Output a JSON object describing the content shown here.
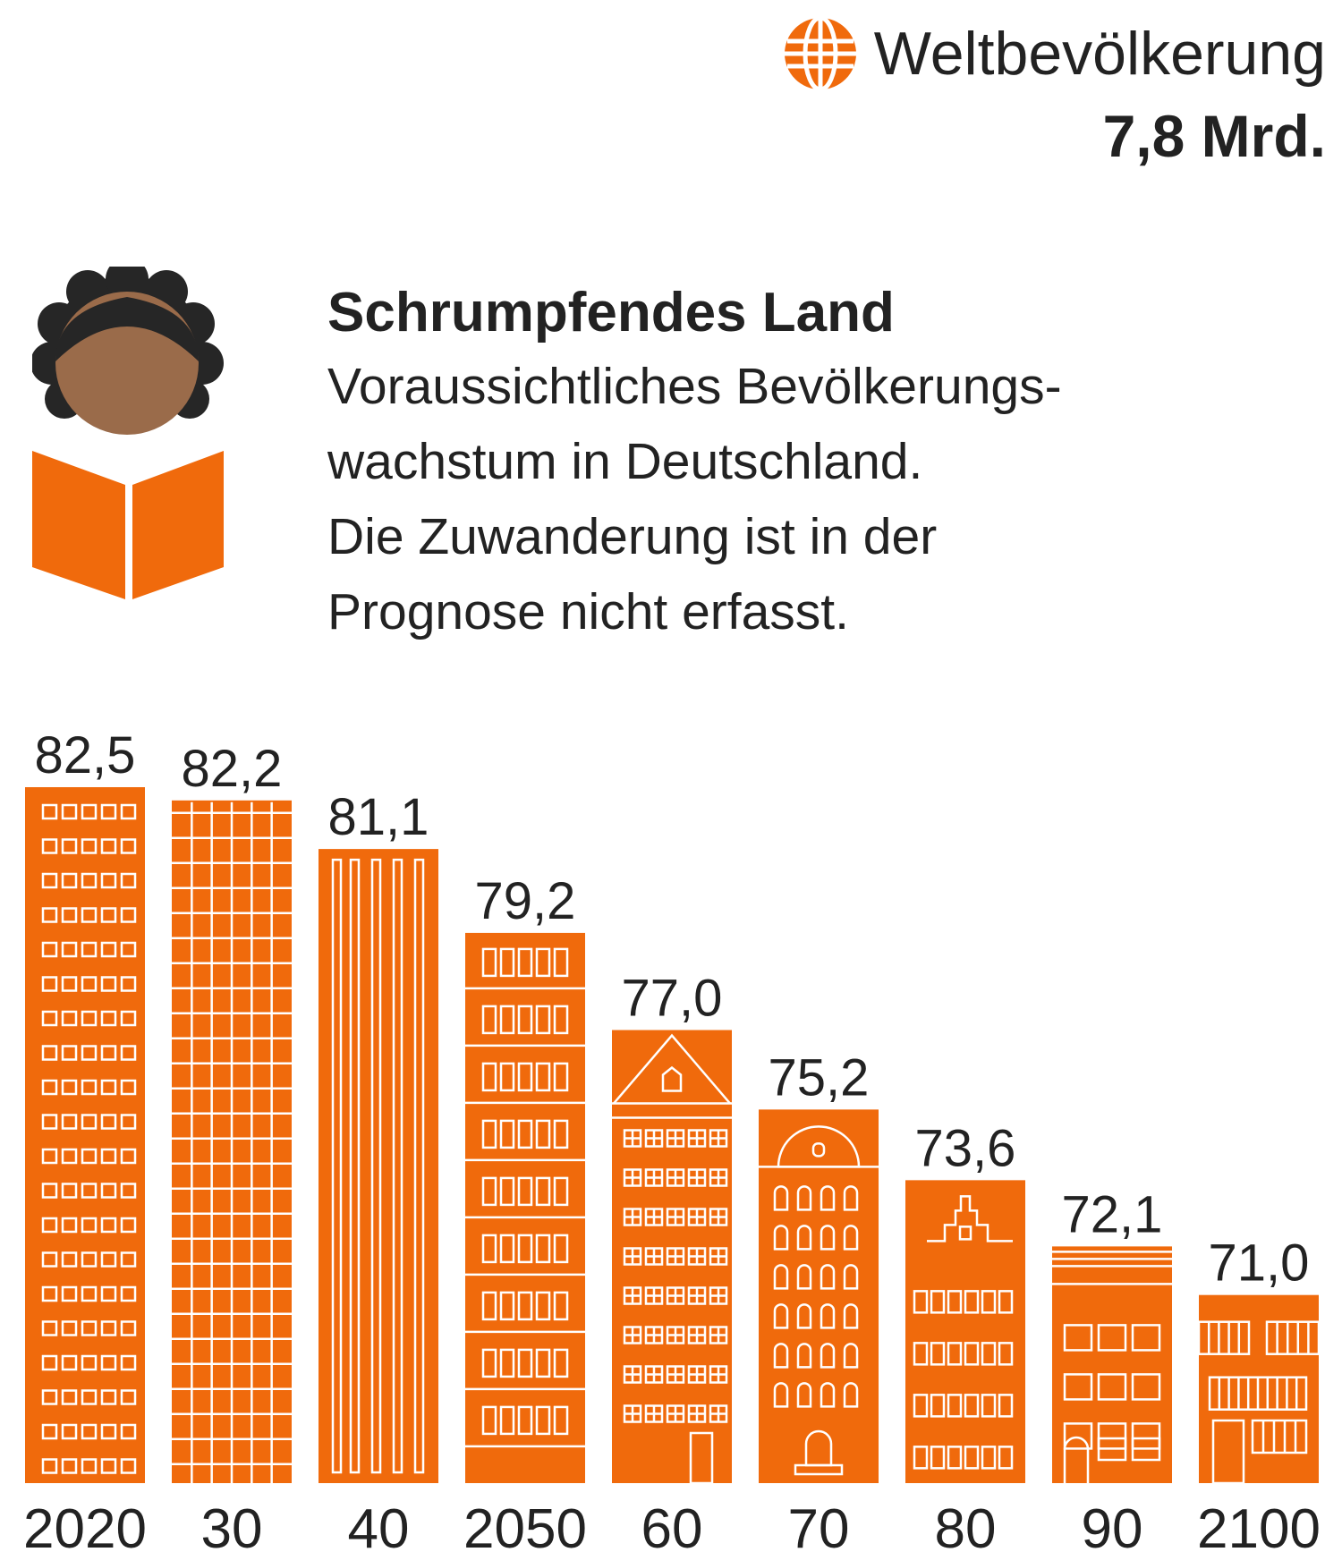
{
  "header": {
    "world_label": "Weltbevölkerung",
    "world_value": "7,8 Mrd.",
    "icon": "globe-icon"
  },
  "intro": {
    "headline": "Schrumpfendes Land",
    "lines": [
      "Voraussichtliches Bevölkerungs-",
      "wachstum in Deutschland.",
      "Die Zuwanderung ist in der",
      "Prognose nicht erfasst."
    ],
    "illustration": "reading-child-icon"
  },
  "colors": {
    "accent": "#F06A0C",
    "text": "#222222",
    "hair": "#262626",
    "skin": "#9A6B4A",
    "window": "#ffffff"
  },
  "chart_data": {
    "type": "bar",
    "categories": [
      "2020",
      "30",
      "40",
      "2050",
      "60",
      "70",
      "80",
      "90",
      "2100"
    ],
    "values": [
      82.5,
      82.2,
      81.1,
      79.2,
      77.0,
      75.2,
      73.6,
      72.1,
      71.0
    ],
    "value_labels": [
      "82,5",
      "82,2",
      "81,1",
      "79,2",
      "77,0",
      "75,2",
      "73,6",
      "72,1",
      "71,0"
    ],
    "title": "Schrumpfendes Land",
    "xlabel": "",
    "ylabel": "",
    "grid": false,
    "legend": "none"
  }
}
